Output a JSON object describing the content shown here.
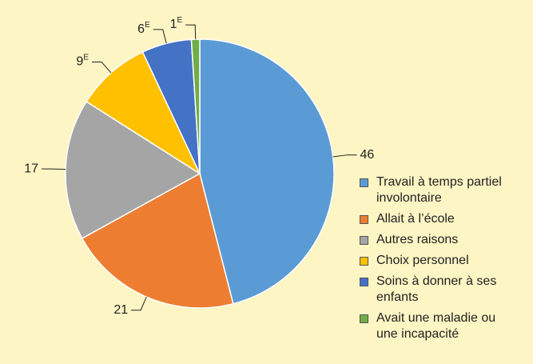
{
  "chart_data": {
    "type": "pie",
    "categories": [
      "Travail à temps partiel involontaire",
      "Allait à l’école",
      "Autres raisons",
      "Choix personnel",
      "Soins à donner à ses enfants",
      "Avait une maladie ou une incapacité"
    ],
    "values": [
      46,
      21,
      17,
      9,
      6,
      1
    ],
    "value_labels": [
      "46",
      "21",
      "17",
      "9E",
      "6E",
      "1E"
    ],
    "colors": [
      "#5b9bd5",
      "#ed7d31",
      "#a5a5a5",
      "#ffc000",
      "#4472c4",
      "#70ad47"
    ],
    "legend": "right"
  }
}
